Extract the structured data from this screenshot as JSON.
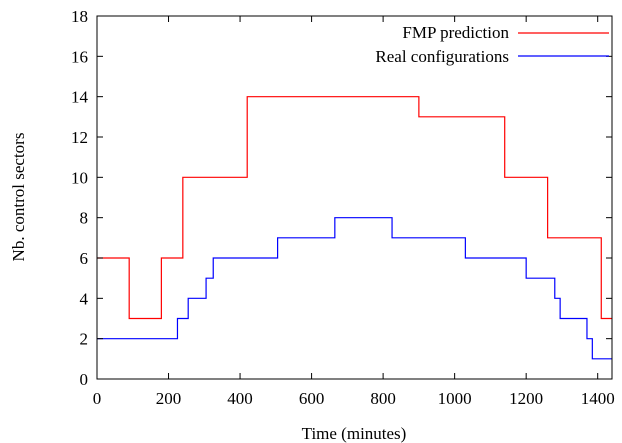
{
  "chart_data": {
    "type": "line",
    "xlabel": "Time (minutes)",
    "ylabel": "Nb. control sectors",
    "xlim": [
      0,
      1440
    ],
    "ylim": [
      0,
      18
    ],
    "x_ticks": [
      0,
      200,
      400,
      600,
      800,
      1000,
      1200,
      1400
    ],
    "y_ticks": [
      0,
      2,
      4,
      6,
      8,
      10,
      12,
      14,
      16,
      18
    ],
    "grid": false,
    "legend_position": "top-right",
    "series": [
      {
        "name": "FMP prediction",
        "color": "#ff0000",
        "step": true,
        "points": [
          [
            0,
            6
          ],
          [
            90,
            3
          ],
          [
            180,
            6
          ],
          [
            240,
            10
          ],
          [
            420,
            14
          ],
          [
            900,
            13
          ],
          [
            1140,
            10
          ],
          [
            1260,
            7
          ],
          [
            1410,
            3
          ],
          [
            1440,
            3
          ]
        ]
      },
      {
        "name": "Real configurations",
        "color": "#0000ff",
        "step": true,
        "points": [
          [
            0,
            2
          ],
          [
            225,
            3
          ],
          [
            255,
            4
          ],
          [
            305,
            5
          ],
          [
            325,
            6
          ],
          [
            505,
            7
          ],
          [
            665,
            8
          ],
          [
            825,
            7
          ],
          [
            1030,
            6
          ],
          [
            1200,
            5
          ],
          [
            1280,
            4
          ],
          [
            1295,
            3
          ],
          [
            1370,
            2
          ],
          [
            1385,
            1
          ],
          [
            1440,
            1
          ]
        ]
      }
    ]
  }
}
